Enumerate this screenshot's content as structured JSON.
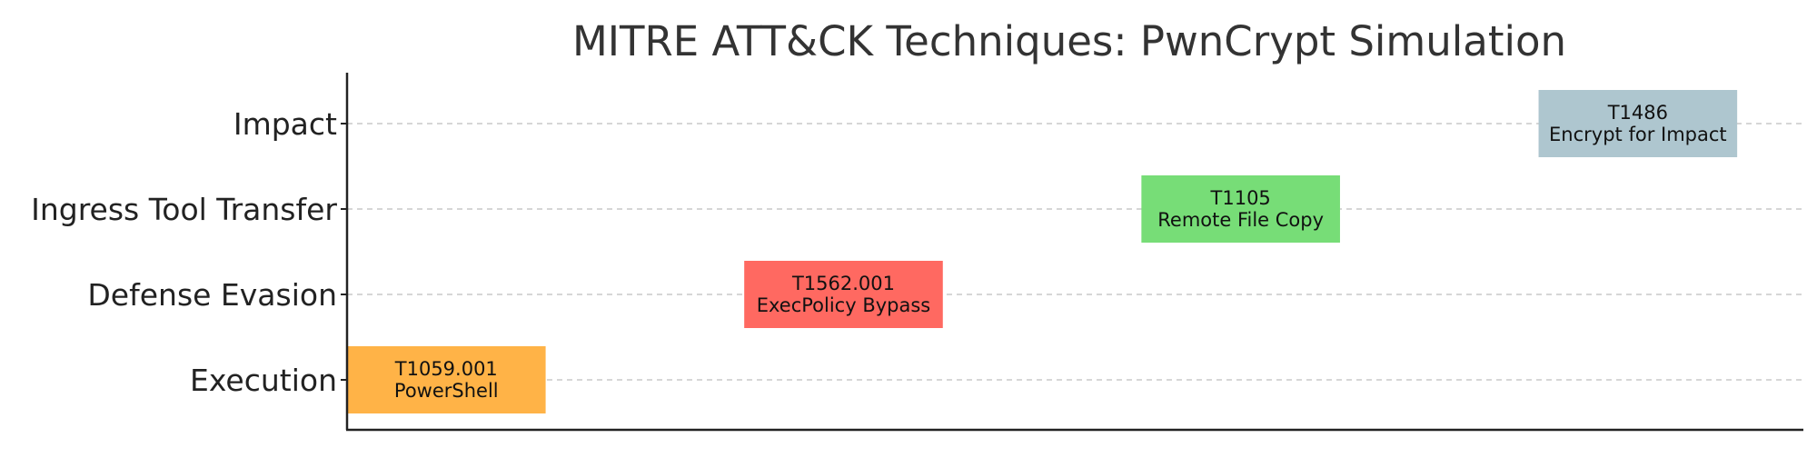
{
  "chart_data": {
    "type": "bar",
    "title": "MITRE ATT&CK Techniques: PwnCrypt Simulation",
    "xlabel": "",
    "ylabel": "",
    "categories": [
      "Execution",
      "Defense Evasion",
      "Ingress Tool Transfer",
      "Impact"
    ],
    "xlim": [
      0,
      11
    ],
    "grid": "horizontal dashed",
    "legend": "none",
    "bars": [
      {
        "category": "Execution",
        "start": 0,
        "end": 1.5,
        "id": "T1059.001",
        "name": "PowerShell",
        "color": "#FFB347"
      },
      {
        "category": "Defense Evasion",
        "start": 3,
        "end": 4.5,
        "id": "T1562.001",
        "name": "ExecPolicy Bypass",
        "color": "#FF6961"
      },
      {
        "category": "Ingress Tool Transfer",
        "start": 6,
        "end": 7.5,
        "id": "T1105",
        "name": "Remote File Copy",
        "color": "#77DD77"
      },
      {
        "category": "Impact",
        "start": 9,
        "end": 10.5,
        "id": "T1486",
        "name": "Encrypt for Impact",
        "color": "#AEC6CF"
      }
    ]
  }
}
